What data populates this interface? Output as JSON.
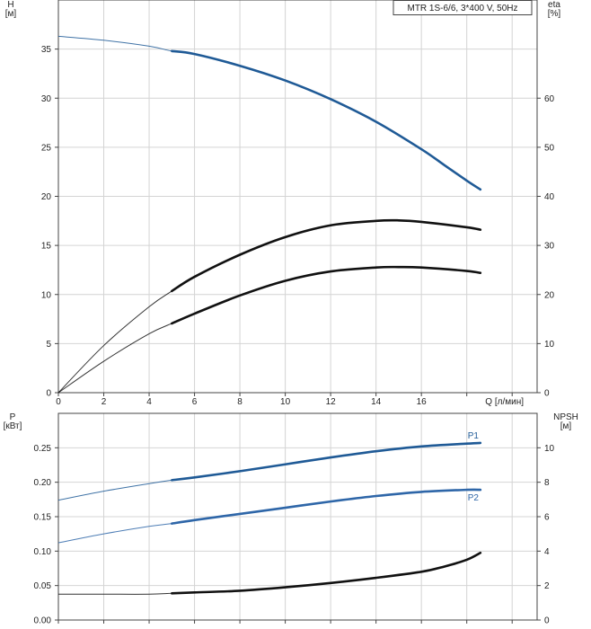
{
  "chart_data": [
    {
      "type": "line",
      "title": "MTR 1S-6/6, 3*400 V, 50Hz",
      "xlabel": "Q [л/мин]",
      "ylabel_left": [
        "H",
        "[м]"
      ],
      "ylabel_right": [
        "eta",
        "[%]"
      ],
      "xlim": [
        0,
        21.1
      ],
      "ylim_left": [
        0,
        40
      ],
      "ylim_right": [
        0,
        80
      ],
      "xticks": [
        "0",
        "2",
        "4",
        "6",
        "8",
        "10",
        "12",
        "14",
        "16"
      ],
      "yticks_left": [
        "0",
        "5",
        "10",
        "15",
        "20",
        "25",
        "30",
        "35"
      ],
      "yticks_right": [
        "0",
        "10",
        "20",
        "30",
        "40",
        "50",
        "60"
      ],
      "grid": true,
      "series": [
        {
          "axis": "left",
          "color": "#1f5a96",
          "x": [
            0,
            2,
            4,
            5,
            6,
            8,
            10,
            12,
            14,
            16,
            17,
            18,
            18.6
          ],
          "y": [
            36.3,
            35.9,
            35.3,
            34.8,
            34.5,
            33.3,
            31.8,
            29.9,
            27.6,
            24.8,
            23.2,
            21.6,
            20.7
          ],
          "operating_range_x": [
            5,
            18.6
          ]
        },
        {
          "axis": "right",
          "color": "#111111",
          "x": [
            0,
            2,
            4,
            5,
            6,
            8,
            10,
            12,
            14,
            15,
            16,
            18,
            18.6
          ],
          "y": [
            0,
            9.6,
            17.5,
            20.7,
            23.6,
            28.1,
            31.7,
            34.1,
            35.0,
            35.1,
            34.8,
            33.7,
            33.2
          ],
          "operating_range_x": [
            5,
            18.6
          ]
        },
        {
          "axis": "right",
          "color": "#111111",
          "x": [
            0,
            2,
            4,
            5,
            6,
            8,
            10,
            12,
            14,
            15,
            16,
            18,
            18.6
          ],
          "y": [
            0,
            6.4,
            12.0,
            14.1,
            16.1,
            19.8,
            22.8,
            24.7,
            25.5,
            25.6,
            25.5,
            24.8,
            24.4
          ],
          "operating_range_x": [
            5,
            18.6
          ]
        }
      ]
    },
    {
      "type": "line",
      "xlabel": "",
      "ylabel_left": [
        "P",
        "[кВт]"
      ],
      "ylabel_right": [
        "NPSH",
        "[м]"
      ],
      "xlim": [
        0,
        21.1
      ],
      "ylim_left": [
        0,
        0.3
      ],
      "ylim_right": [
        0,
        12
      ],
      "yticks_left": [
        "0.00",
        "0.05",
        "0.10",
        "0.15",
        "0.20",
        "0.25"
      ],
      "yticks_right": [
        "0",
        "2",
        "4",
        "6",
        "8",
        "10"
      ],
      "grid": true,
      "series": [
        {
          "name": "P1",
          "axis": "left",
          "color": "#1f5a96",
          "x": [
            0,
            2,
            4,
            5,
            6,
            8,
            10,
            12,
            14,
            16,
            18,
            18.6
          ],
          "y": [
            0.174,
            0.187,
            0.198,
            0.203,
            0.207,
            0.216,
            0.226,
            0.236,
            0.245,
            0.252,
            0.256,
            0.257
          ],
          "operating_range_x": [
            5,
            18.6
          ]
        },
        {
          "name": "P2",
          "axis": "left",
          "color": "#2e66a8",
          "x": [
            0,
            2,
            4,
            5,
            6,
            8,
            10,
            12,
            14,
            16,
            18,
            18.6
          ],
          "y": [
            0.112,
            0.125,
            0.136,
            0.14,
            0.145,
            0.154,
            0.163,
            0.172,
            0.18,
            0.186,
            0.189,
            0.189
          ],
          "operating_range_x": [
            5,
            18.6
          ]
        },
        {
          "axis": "right",
          "color": "#111111",
          "x": [
            0,
            2,
            4,
            5,
            6,
            8,
            10,
            12,
            14,
            16,
            17,
            18,
            18.6
          ],
          "y": [
            1.5,
            1.5,
            1.5,
            1.55,
            1.6,
            1.7,
            1.9,
            2.15,
            2.45,
            2.8,
            3.1,
            3.5,
            3.9
          ],
          "operating_range_x": [
            5,
            18.6
          ]
        }
      ]
    }
  ]
}
